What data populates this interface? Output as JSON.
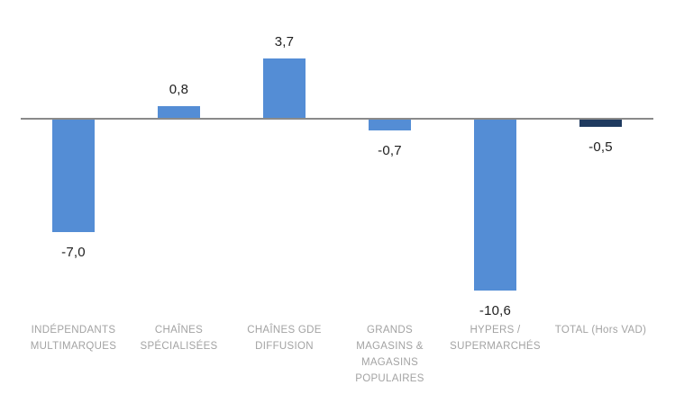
{
  "chart_data": {
    "type": "bar",
    "title": "",
    "xlabel": "",
    "ylabel": "",
    "categories": [
      "INDÉPENDANTS MULTIMARQUES",
      "CHAÎNES SPÉCIALISÉES",
      "CHAÎNES GDE DIFFUSION",
      "GRANDS MAGASINS & MAGASINS POPULAIRES",
      "HYPERS / SUPERMARCHÉS",
      "TOTAL (Hors VAD)"
    ],
    "category_display": [
      "INDÉPENDANTS\nMULTIMARQUES",
      "CHAÎNES\nSPÉCIALISÉES",
      "CHAÎNES GDE\nDIFFUSION",
      "GRANDS\nMAGASINS &\nMAGASINS\nPOPULAIRES",
      "HYPERS /\nSUPERMARCHÉS",
      "TOTAL (Hors VAD)"
    ],
    "values": [
      -7.0,
      0.8,
      3.7,
      -0.7,
      -10.6,
      -0.5
    ],
    "value_labels": [
      "-7,0",
      "0,8",
      "3,7",
      "-0,7",
      "-10,6",
      "-0,5"
    ],
    "decimal_separator": ",",
    "ylim": [
      -12,
      6
    ],
    "grid": false,
    "legend": "none",
    "bar_colors": [
      "#548DD5",
      "#548DD5",
      "#548DD5",
      "#548DD5",
      "#548DD5",
      "#1F3A5F"
    ],
    "colors": {
      "bar_default": "#548DD5",
      "bar_total": "#1F3A5F",
      "axis_line": "#8A8A8A",
      "value_label": "#1F1F1F",
      "category_label": "#A3A3A3",
      "background": "#FFFFFF"
    }
  }
}
